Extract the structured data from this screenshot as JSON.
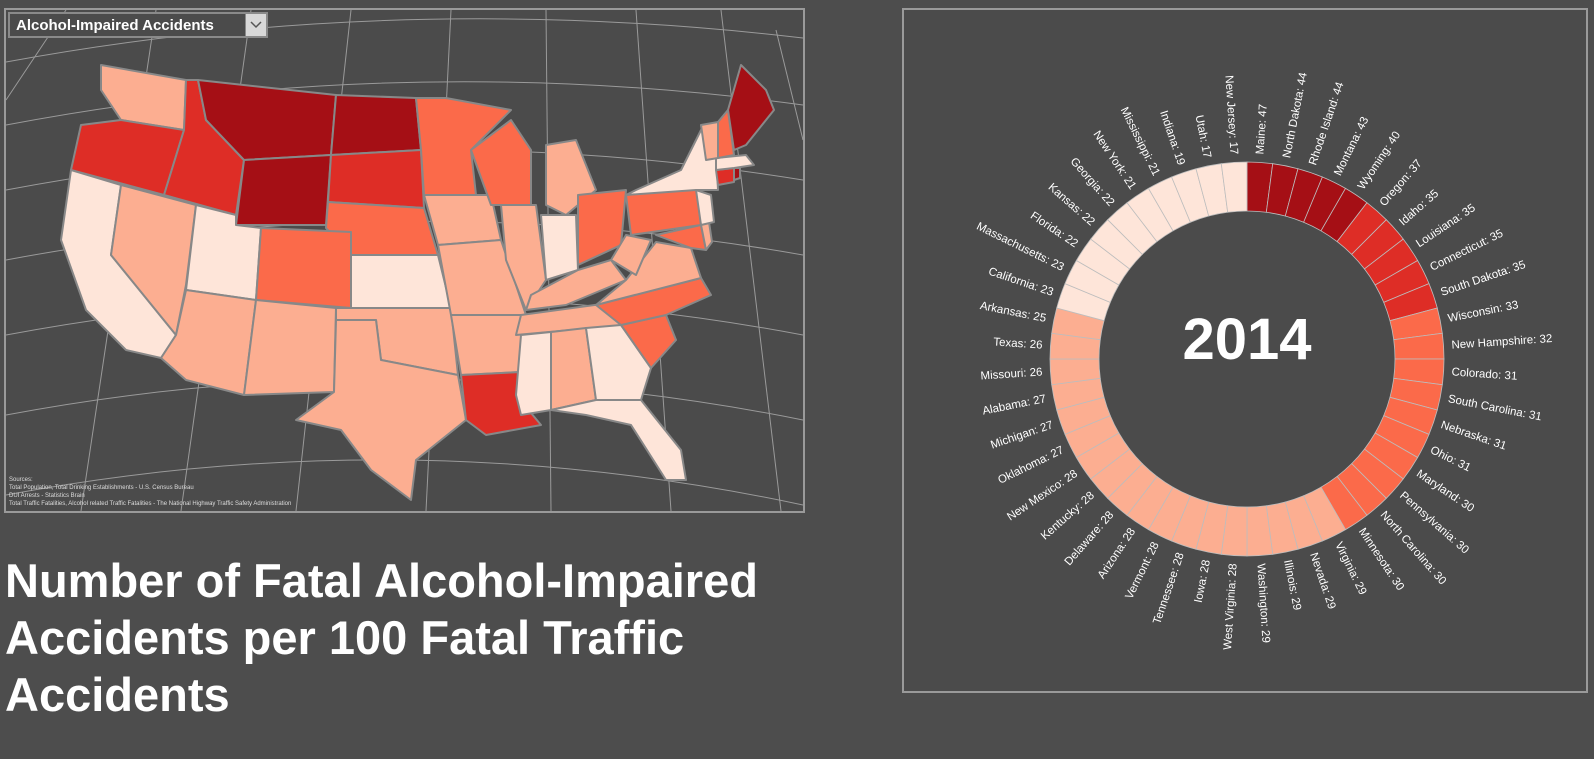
{
  "dropdown": {
    "selected": "Alcohol-Impaired Accidents"
  },
  "page_title": "Number of Fatal Alcohol-Impaired Accidents per 100 Fatal Traffic Accidents",
  "sources": {
    "heading": "Sources:",
    "lines": [
      "Total Population, Total Drinking Establishments - U.S. Census Bureau",
      "DUI Arrests - Statistics Brain",
      "Total Traffic Fatalities, Alcohol related Traffic Fatalities - The National Highway Traffic Safety Administration"
    ]
  },
  "colors": {
    "background": "#4d4d4d",
    "panel_border": "#9a9a9a",
    "scale": [
      "#fee5d9",
      "#fcae91",
      "#fb6a4a",
      "#de2d26",
      "#a50f15"
    ]
  },
  "chart_data": {
    "type": "radial_bar",
    "center_label": "2014",
    "categories": [
      "Maine",
      "North Dakota",
      "Rhode Island",
      "Montana",
      "Wyoming",
      "Oregon",
      "Idaho",
      "Louisiana",
      "Connecticut",
      "South Dakota",
      "Wisconsin",
      "New Hampshire",
      "Colorado",
      "South Carolina",
      "Nebraska",
      "Ohio",
      "Maryland",
      "Pennsylvania",
      "North Carolina",
      "Minnesota",
      "Virginia",
      "Nevada",
      "Illinois",
      "Washington",
      "West Virginia",
      "Iowa",
      "Tennessee",
      "Vermont",
      "Arizona",
      "Delaware",
      "Kentucky",
      "New Mexico",
      "Oklahoma",
      "Michigan",
      "Alabama",
      "Missouri",
      "Texas",
      "Arkansas",
      "California",
      "Massachusetts",
      "Florida",
      "Kansas",
      "Georgia",
      "New York",
      "Mississippi",
      "Indiana",
      "Utah",
      "New Jersey"
    ],
    "values": [
      47,
      44,
      44,
      43,
      40,
      37,
      35,
      35,
      35,
      35,
      33,
      32,
      31,
      31,
      31,
      31,
      30,
      30,
      30,
      30,
      29,
      29,
      29,
      29,
      28,
      28,
      28,
      28,
      28,
      28,
      28,
      28,
      27,
      27,
      27,
      26,
      26,
      25,
      23,
      23,
      22,
      22,
      22,
      21,
      21,
      19,
      17,
      17
    ],
    "labels": [
      "Maine: 47",
      "North Dakota: 44",
      "Rhode Island: 44",
      "Montana: 43",
      "Wyoming: 40",
      "Oregon: 37",
      "Idaho: 35",
      "Louisiana: 35",
      "Connecticut: 35",
      "South Dakota: 35",
      "Wisconsin: 33",
      "New Hampshire: 32",
      "Colorado: 31",
      "South Carolina: 31",
      "Nebraska: 31",
      "Ohio: 31",
      "Maryland: 30",
      "Pennsylvania: 30",
      "North Carolina: 30",
      "Minnesota: 30",
      "Virginia: 29",
      "Nevada: 29",
      "Illinois: 29",
      "Washington: 29",
      "West Virginia: 28",
      "Iowa: 28",
      "Tennessee: 28",
      "Vermont: 28",
      "Arizona: 28",
      "Delaware: 28",
      "Kentucky: 28",
      "New Mexico: 28",
      "Oklahoma: 27",
      "Michigan: 27",
      "Alabama: 27",
      "Missouri: 26",
      "Texas: 26",
      "Arkansas: 25",
      "California: 23",
      "Massachusetts: 23",
      "Florida: 22",
      "Kansas: 22",
      "Georgia: 22",
      "New York: 21",
      "Mississippi: 21",
      "Indiana: 19",
      "Utah: 17",
      "New Jersey: 17"
    ],
    "color_levels": [
      4,
      4,
      4,
      4,
      4,
      3,
      3,
      3,
      3,
      3,
      2,
      2,
      2,
      2,
      2,
      2,
      2,
      2,
      2,
      2,
      1,
      1,
      1,
      1,
      1,
      1,
      1,
      1,
      1,
      1,
      1,
      1,
      1,
      1,
      1,
      1,
      1,
      1,
      0,
      0,
      0,
      0,
      0,
      0,
      0,
      0,
      0,
      0
    ]
  }
}
